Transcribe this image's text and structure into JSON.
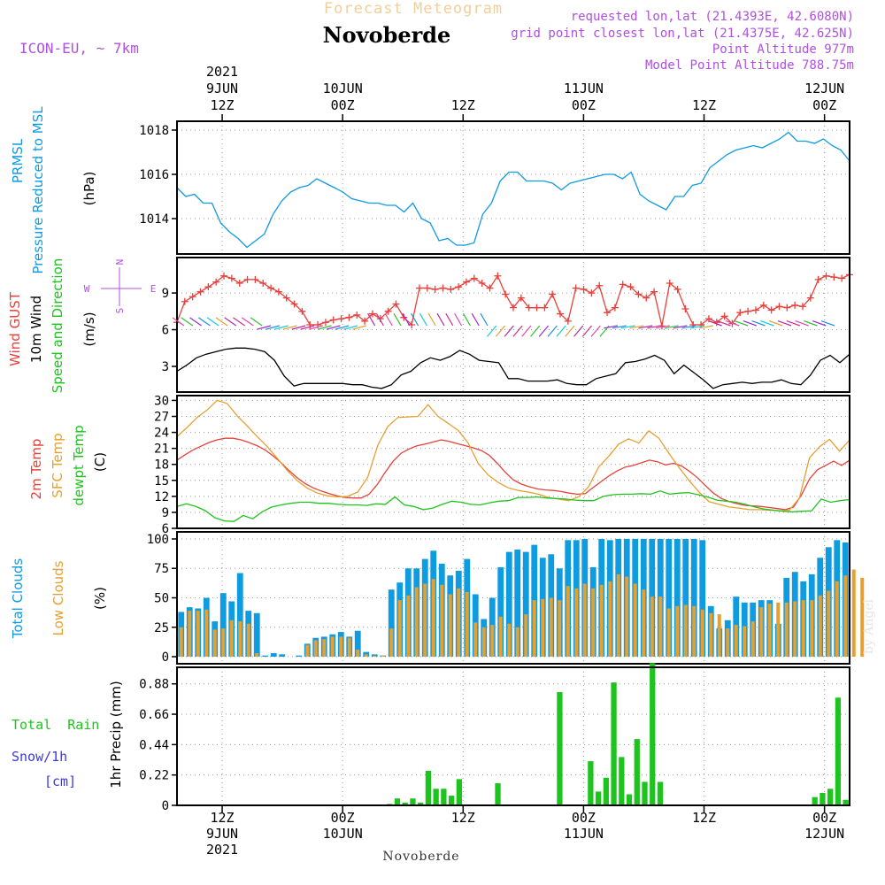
{
  "header": {
    "product": "Forecast Meteogram",
    "location": "Novoberde",
    "model": "ICON-EU, ~ 7km",
    "info": [
      "requested lon,lat (21.4393E, 42.6080N)",
      "grid point closest lon,lat (21.4375E, 42.625N)",
      "Point Altitude 977m",
      "Model Point Altitude 788.75m"
    ],
    "watermark": "by Angel"
  },
  "time_axis": {
    "start_index": 0,
    "end_index": 67,
    "top_labels": [
      {
        "t": 4.5,
        "lines": [
          "2021",
          "9JUN",
          "12Z"
        ]
      },
      {
        "t": 16.5,
        "lines": [
          "10JUN",
          "00Z"
        ]
      },
      {
        "t": 28.5,
        "lines": [
          "12Z"
        ]
      },
      {
        "t": 40.5,
        "lines": [
          "11JUN",
          "00Z"
        ]
      },
      {
        "t": 52.5,
        "lines": [
          "12Z"
        ]
      },
      {
        "t": 64.5,
        "lines": [
          "12JUN",
          "00Z"
        ]
      }
    ],
    "bottom_labels": [
      {
        "t": 4.5,
        "lines": [
          "12Z",
          "9JUN",
          "2021"
        ]
      },
      {
        "t": 16.5,
        "lines": [
          "00Z",
          "10JUN"
        ]
      },
      {
        "t": 28.5,
        "lines": [
          "12Z"
        ]
      },
      {
        "t": 40.5,
        "lines": [
          "00Z",
          "11JUN"
        ]
      },
      {
        "t": 52.5,
        "lines": [
          "12Z"
        ]
      },
      {
        "t": 64.5,
        "lines": [
          "00Z",
          "12JUN"
        ]
      }
    ],
    "footer": "Novoberde"
  },
  "panels": {
    "pressure": {
      "labels": [
        {
          "text": "PRMSL",
          "color": "#0f9be0"
        },
        {
          "text": "Pressure Reduced to MSL",
          "color": "#0f9be0"
        },
        {
          "text": "(hPa)",
          "color": "#000000"
        }
      ]
    },
    "wind": {
      "labels": [
        {
          "text": "Wind GUST",
          "color": "#e8403a"
        },
        {
          "text": "10m Wind",
          "color": "#000000"
        },
        {
          "text": "Speed and Direction",
          "color": "#1ec41e"
        },
        {
          "text": "(m/s)",
          "color": "#000000"
        }
      ],
      "compass": {
        "n": "N",
        "s": "S",
        "w": "W",
        "e": "E",
        "color": "#b050e0"
      }
    },
    "temperature": {
      "labels": [
        {
          "text": "2m Temp",
          "color": "#e8403a"
        },
        {
          "text": "SFC Temp",
          "color": "#e6a030"
        },
        {
          "text": "dewpt Temp",
          "color": "#1ec41e"
        },
        {
          "text": "(C)",
          "color": "#000000"
        }
      ]
    },
    "clouds": {
      "labels": [
        {
          "text": "Total Clouds",
          "color": "#0f9be0"
        },
        {
          "text": "Low Clouds",
          "color": "#e6a030"
        },
        {
          "text": "(%)",
          "color": "#000000"
        }
      ]
    },
    "precip": {
      "side_labels": [
        {
          "text": "Total  Rain",
          "color": "#1ec41e"
        },
        {
          "text": "Snow/1h",
          "color": "#3a3ae0"
        },
        {
          "text": "[cm]",
          "color": "#3a3ae0"
        }
      ],
      "ylabel": "1hr Precip (mm)"
    }
  },
  "chart_data": [
    {
      "type": "line",
      "name": "pressure",
      "ylim": [
        1012.4,
        1018.4
      ],
      "yticks": [
        1014,
        1016,
        1018
      ],
      "grid": true,
      "series": [
        {
          "name": "PRMSL",
          "color": "#0f9be0",
          "values": [
            1015.4,
            1015.0,
            1015.1,
            1014.7,
            1014.7,
            1013.8,
            1013.4,
            1013.1,
            1012.7,
            1013.0,
            1013.3,
            1014.2,
            1014.8,
            1015.2,
            1015.4,
            1015.5,
            1015.8,
            1015.6,
            1015.4,
            1015.2,
            1014.9,
            1014.8,
            1014.7,
            1014.7,
            1014.6,
            1014.6,
            1014.3,
            1014.7,
            1014.0,
            1013.8,
            1013.0,
            1013.1,
            1012.8,
            1012.8,
            1012.9,
            1014.2,
            1014.7,
            1015.7,
            1016.1,
            1016.1,
            1015.7,
            1015.7,
            1015.7,
            1015.6,
            1015.3,
            1015.6,
            1015.7,
            1015.8,
            1015.9,
            1016.0,
            1016.0,
            1015.8,
            1016.1,
            1015.1,
            1014.8,
            1014.6,
            1014.4,
            1015.0,
            1015.0,
            1015.5,
            1015.6,
            1016.3,
            1016.6,
            1016.9,
            1017.1,
            1017.2,
            1017.3,
            1017.2,
            1017.4,
            1017.6,
            1017.9,
            1017.5,
            1017.5,
            1017.4,
            1017.6,
            1017.3,
            1017.1,
            1016.6
          ]
        }
      ]
    },
    {
      "type": "line",
      "name": "wind",
      "ylim": [
        0.9,
        11.9
      ],
      "yticks": [
        3,
        6,
        9
      ],
      "grid": true,
      "series": [
        {
          "name": "Wind GUST",
          "color": "#e8403a",
          "marker": "+",
          "values": [
            6.6,
            8.3,
            8.7,
            9.1,
            9.5,
            9.9,
            10.4,
            10.2,
            9.8,
            10.1,
            10.1,
            9.8,
            9.4,
            9.1,
            8.6,
            8.1,
            7.5,
            6.4,
            6.4,
            6.6,
            6.8,
            6.9,
            7.0,
            7.2,
            6.7,
            7.3,
            6.9,
            7.5,
            8.1,
            7.0,
            6.4,
            9.4,
            9.4,
            9.3,
            9.4,
            9.3,
            9.5,
            9.9,
            10.2,
            9.8,
            9.4,
            10.4,
            8.9,
            7.8,
            8.6,
            7.8,
            7.8,
            7.8,
            8.9,
            7.3,
            6.7,
            9.4,
            9.3,
            9.0,
            9.6,
            7.4,
            7.8,
            9.7,
            9.5,
            8.9,
            8.6,
            9.1,
            6.3,
            9.8,
            9.3,
            7.7,
            6.4,
            6.4,
            6.9,
            6.6,
            7.1,
            6.5,
            7.4,
            7.5,
            7.6,
            8.0,
            7.6,
            7.9,
            7.8,
            8.0,
            7.9,
            8.6,
            10.1,
            10.4,
            10.3,
            10.2,
            10.5
          ]
        },
        {
          "name": "10m Wind",
          "color": "#000000",
          "values": [
            2.6,
            3.1,
            3.7,
            4.0,
            4.2,
            4.4,
            4.5,
            4.5,
            4.4,
            4.2,
            3.5,
            2.2,
            1.4,
            1.6,
            1.6,
            1.6,
            1.6,
            1.6,
            1.5,
            1.5,
            1.3,
            1.2,
            1.5,
            2.3,
            2.6,
            3.3,
            3.7,
            3.5,
            3.8,
            4.3,
            4.0,
            3.5,
            3.4,
            3.3,
            2.0,
            2.0,
            1.8,
            1.8,
            1.8,
            1.9,
            1.6,
            1.5,
            1.5,
            2.0,
            2.2,
            2.4,
            3.3,
            3.4,
            3.6,
            3.9,
            3.5,
            2.4,
            3.1,
            2.5,
            1.9,
            1.2,
            1.5,
            1.6,
            1.7,
            1.6,
            1.7,
            1.7,
            1.9,
            1.6,
            1.5,
            2.3,
            3.5,
            3.9,
            3.3,
            4.0
          ]
        }
      ]
    },
    {
      "type": "line",
      "name": "temperature",
      "ylim": [
        6,
        30.9
      ],
      "yticks": [
        6,
        9,
        12,
        15,
        18,
        21,
        24,
        27,
        30
      ],
      "grid": true,
      "series": [
        {
          "name": "2m Temp",
          "color": "#e8403a",
          "values": [
            18.8,
            19.8,
            20.7,
            21.4,
            22.1,
            22.6,
            22.9,
            22.9,
            22.6,
            22.1,
            21.5,
            20.7,
            19.6,
            18.3,
            16.8,
            15.5,
            14.4,
            13.6,
            13.0,
            12.5,
            12.1,
            11.8,
            11.7,
            11.7,
            12.4,
            14.2,
            16.5,
            18.6,
            20.1,
            20.9,
            21.5,
            21.8,
            22.2,
            22.6,
            22.3,
            21.9,
            21.5,
            21.1,
            20.6,
            19.7,
            18.2,
            16.5,
            15.1,
            14.3,
            13.8,
            13.4,
            13.2,
            13.1,
            12.9,
            12.6,
            12.4,
            12.5,
            13.7,
            14.8,
            15.9,
            16.8,
            17.5,
            17.8,
            18.3,
            18.8,
            18.5,
            17.9,
            18.2,
            17.7,
            16.7,
            15.5,
            14.0,
            12.6,
            11.6,
            11.0,
            10.6,
            10.3,
            10.2,
            10.1,
            9.9,
            9.7,
            9.5,
            10.0,
            12.3,
            15.3,
            17.0,
            17.8,
            18.6,
            17.8,
            18.8
          ]
        },
        {
          "name": "SFC Temp",
          "color": "#e6a030",
          "values": [
            23.2,
            24.9,
            26.8,
            28.2,
            30.0,
            29.4,
            27.1,
            25.2,
            23.2,
            21.3,
            19.1,
            16.8,
            14.9,
            13.5,
            12.6,
            12.1,
            11.9,
            12.0,
            12.8,
            15.6,
            21.6,
            25.1,
            26.8,
            26.9,
            27.0,
            29.2,
            27.0,
            25.7,
            24.4,
            22.0,
            18.2,
            16.0,
            14.6,
            13.6,
            13.1,
            12.8,
            12.4,
            11.8,
            11.5,
            11.2,
            11.9,
            13.8,
            17.5,
            19.5,
            21.8,
            22.8,
            22.0,
            24.3,
            22.9,
            20.1,
            17.4,
            15.0,
            12.8,
            11.0,
            10.5,
            10.0,
            9.8,
            9.5,
            9.5,
            9.4,
            9.3,
            9.4,
            11.7,
            19.2,
            21.3,
            22.7,
            20.5,
            22.6
          ]
        },
        {
          "name": "dewpt Temp",
          "color": "#1ec41e",
          "values": [
            10.1,
            10.6,
            10.1,
            9.3,
            8.0,
            7.4,
            7.3,
            8.4,
            7.8,
            9.1,
            10.0,
            10.4,
            10.7,
            10.9,
            10.9,
            10.7,
            10.7,
            10.5,
            10.4,
            10.4,
            10.3,
            10.6,
            10.5,
            11.9,
            10.4,
            10.1,
            9.5,
            9.8,
            10.5,
            11.1,
            10.9,
            10.5,
            10.4,
            10.8,
            11.1,
            11.2,
            11.8,
            11.8,
            11.9,
            11.7,
            11.6,
            11.5,
            11.3,
            11.2,
            11.2,
            12.0,
            12.3,
            12.4,
            12.4,
            12.5,
            12.4,
            13.0,
            12.4,
            12.6,
            12.7,
            12.3,
            11.9,
            11.3,
            11.1,
            10.9,
            10.5,
            10.0,
            9.6,
            9.4,
            9.2,
            9.1,
            9.2,
            9.3,
            11.5,
            10.9,
            11.2,
            11.4
          ]
        }
      ]
    },
    {
      "type": "bar",
      "name": "clouds",
      "ylim": [
        -6,
        106
      ],
      "yticks": [
        0,
        25,
        50,
        75,
        100
      ],
      "grid": true,
      "series": [
        {
          "name": "Total Clouds",
          "color": "#0f9be0",
          "values": [
            38,
            42,
            41,
            50,
            30,
            54,
            47,
            71,
            39,
            37,
            1,
            3,
            2,
            0,
            1,
            11,
            16,
            17,
            19,
            21,
            17,
            22,
            4,
            2,
            1,
            57,
            63,
            75,
            75,
            83,
            90,
            79,
            69,
            73,
            83,
            53,
            32,
            50,
            76,
            89,
            91,
            89,
            95,
            84,
            87,
            75,
            99,
            99,
            100,
            76,
            100,
            99,
            100,
            100,
            100,
            100,
            100,
            100,
            100,
            100,
            100,
            100,
            99,
            43,
            24,
            31,
            51,
            46,
            46,
            48,
            48,
            28,
            67,
            72,
            64,
            70,
            84,
            93,
            99,
            97
          ]
        },
        {
          "name": "Low Clouds",
          "color": "#e6a030",
          "values": [
            25,
            39,
            39,
            40,
            23,
            24,
            31,
            30,
            28,
            3,
            0,
            0,
            0,
            0,
            0,
            10,
            14,
            15,
            17,
            17,
            16,
            6,
            2,
            1,
            1,
            24,
            48,
            52,
            59,
            62,
            66,
            61,
            53,
            58,
            55,
            29,
            25,
            27,
            34,
            28,
            25,
            36,
            48,
            49,
            50,
            48,
            60,
            58,
            62,
            58,
            61,
            64,
            70,
            68,
            62,
            57,
            51,
            51,
            41,
            43,
            44,
            43,
            40,
            37,
            36,
            24,
            27,
            26,
            30,
            42,
            45,
            46,
            46,
            47,
            48,
            48,
            52,
            56,
            64,
            69,
            74,
            67
          ]
        }
      ]
    },
    {
      "type": "bar",
      "name": "precip",
      "ylabel": "1hr Precip (mm)",
      "ylim": [
        0,
        1.0
      ],
      "yticks": [
        0,
        0.22,
        0.44,
        0.66,
        0.88
      ],
      "ytick_labels": [
        "0",
        "0.22",
        "0.44",
        "0.66",
        "0.88"
      ],
      "grid": true,
      "series": [
        {
          "name": "Total Rain",
          "color": "#1ec41e",
          "values": [
            0,
            0,
            0,
            0,
            0,
            0,
            0,
            0,
            0,
            0,
            0,
            0,
            0,
            0,
            0,
            0,
            0,
            0,
            0,
            0,
            0,
            0,
            0,
            0,
            0,
            0,
            0,
            0.01,
            0.05,
            0.02,
            0.05,
            0.02,
            0.25,
            0.12,
            0.12,
            0.07,
            0.19,
            0,
            0,
            0,
            0,
            0.16,
            0,
            0,
            0,
            0,
            0,
            0,
            0,
            0.82,
            0,
            0,
            0,
            0.32,
            0.1,
            0.2,
            0.89,
            0.35,
            0.08,
            0.48,
            0.17,
            1.03,
            0.17,
            0,
            0,
            0,
            0,
            0,
            0,
            0,
            0,
            0,
            0,
            0,
            0,
            0,
            0,
            0,
            0,
            0,
            0,
            0,
            0.06,
            0.09,
            0.12,
            0.78,
            0.04
          ]
        }
      ]
    }
  ]
}
